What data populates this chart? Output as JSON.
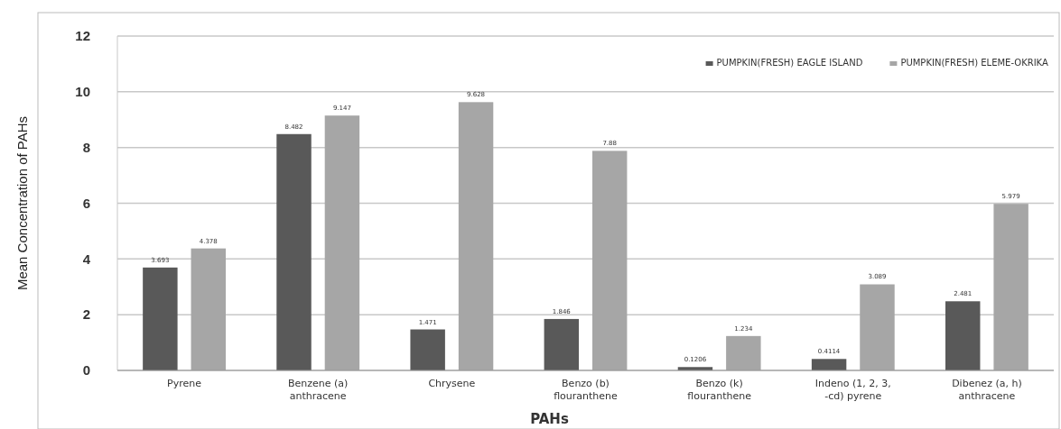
{
  "chart_data": {
    "type": "bar",
    "xlabel": "PAHs",
    "ylabel": "Mean Concentration of PAHs",
    "categories": [
      "Pyrene",
      "Benzene (a)\nanthracene",
      "Chrysene",
      "Benzo (b)\nflouranthene",
      "Benzo (k)\nflouranthene",
      "Indeno (1, 2, 3,\n-cd) pyrene",
      "Dibenez (a, h)\nanthracene"
    ],
    "series": [
      {
        "name": "PUMPKIN(FRESH) EAGLE ISLAND",
        "color": "#595959",
        "values": [
          3.693,
          8.482,
          1.471,
          1.846,
          0.1206,
          0.4114,
          2.481
        ]
      },
      {
        "name": "PUMPKIN(FRESH) ELEME-OKRIKA",
        "color": "#a6a6a6",
        "values": [
          4.378,
          9.147,
          9.628,
          7.88,
          1.234,
          3.089,
          5.979
        ]
      }
    ],
    "ylim": [
      0,
      12
    ],
    "yticks": [
      0,
      2,
      4,
      6,
      8,
      10,
      12
    ],
    "grid": "y",
    "legend": "top right",
    "data_labels": true
  }
}
